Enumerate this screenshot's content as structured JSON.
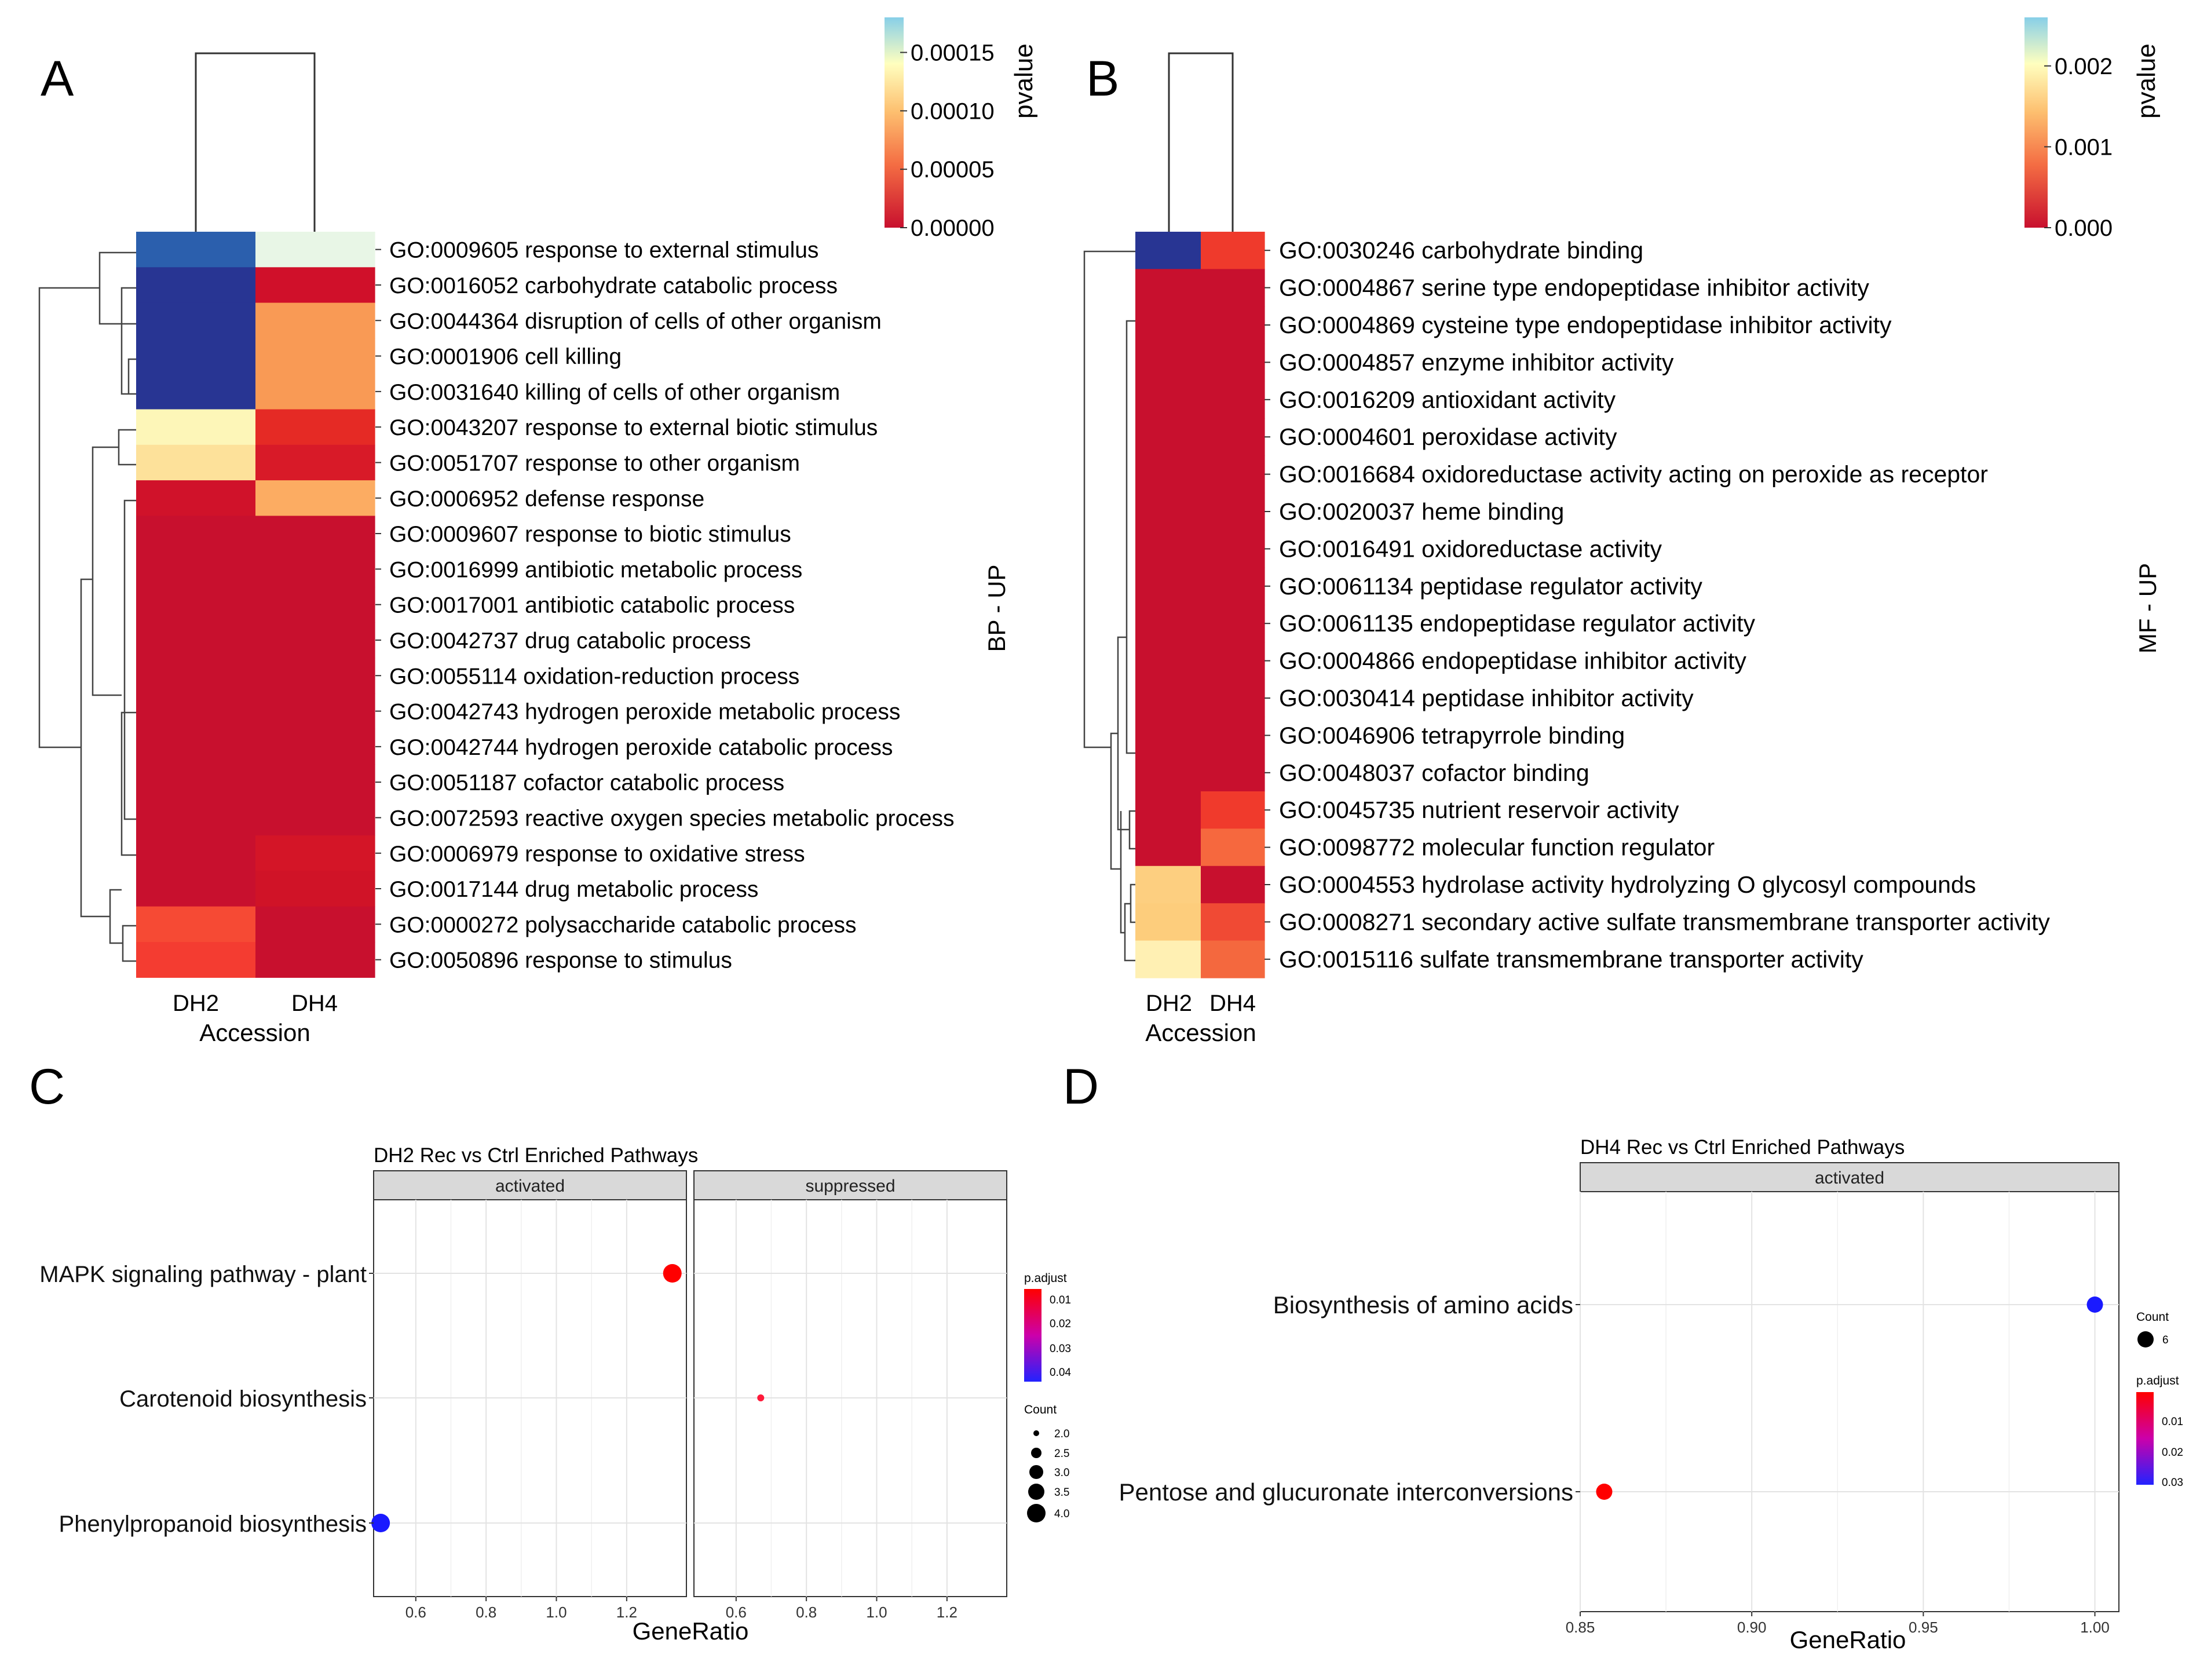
{
  "panels": {
    "A": {
      "label": "A",
      "side_label": "BP - UP",
      "colorbar": {
        "title": "pvalue",
        "ticks": [
          "0.00015",
          "0.00010",
          "0.00005",
          "0.00000"
        ],
        "tick_values": [
          0.00015,
          0.0001,
          5e-05,
          0
        ],
        "max": 0.00018
      },
      "columns": [
        "DH2",
        "DH4"
      ],
      "xlabel": "Accession",
      "rows": [
        "GO:0009605 response to external stimulus",
        "GO:0016052 carbohydrate catabolic process",
        "GO:0044364 disruption of cells of other organism",
        "GO:0001906 cell killing",
        "GO:0031640 killing of cells of other organism",
        "GO:0043207 response to external biotic stimulus",
        "GO:0051707 response to other organism",
        "GO:0006952 defense response",
        "GO:0009607 response to biotic stimulus",
        "GO:0016999 antibiotic metabolic process",
        "GO:0017001 antibiotic catabolic process",
        "GO:0042737 drug catabolic process",
        "GO:0055114 oxidation-reduction process",
        "GO:0042743 hydrogen peroxide metabolic process",
        "GO:0042744 hydrogen peroxide catabolic process",
        "GO:0051187 cofactor catabolic process",
        "GO:0072593 reactive oxygen species metabolic process",
        "GO:0006979 response to oxidative stress",
        "GO:0017144 drug metabolic process",
        "GO:0000272 polysaccharide catabolic process",
        "GO:0050896 response to stimulus"
      ],
      "cell_colors": [
        [
          "#2b5fad",
          "#e8f6e6"
        ],
        [
          "#283593",
          "#d0102a"
        ],
        [
          "#283593",
          "#f99a55"
        ],
        [
          "#283593",
          "#f99a55"
        ],
        [
          "#283593",
          "#f99a55"
        ],
        [
          "#fdf6b8",
          "#e52a25"
        ],
        [
          "#fde19a",
          "#d81a28"
        ],
        [
          "#d0122a",
          "#fcac62"
        ],
        [
          "#c8102e",
          "#c8102e"
        ],
        [
          "#c8102e",
          "#c8102e"
        ],
        [
          "#c8102e",
          "#c8102e"
        ],
        [
          "#c8102e",
          "#c8102e"
        ],
        [
          "#c8102e",
          "#c8102e"
        ],
        [
          "#c8102e",
          "#c8102e"
        ],
        [
          "#c8102e",
          "#c8102e"
        ],
        [
          "#c8102e",
          "#c8102e"
        ],
        [
          "#c8102e",
          "#c8102e"
        ],
        [
          "#c8102e",
          "#d41527"
        ],
        [
          "#c8102e",
          "#d01327"
        ],
        [
          "#f64a34",
          "#c8102e"
        ],
        [
          "#f43c31",
          "#c8102e"
        ]
      ]
    },
    "B": {
      "label": "B",
      "side_label": "MF - UP",
      "colorbar": {
        "title": "pvalue",
        "ticks": [
          "0.002",
          "0.001",
          "0.000"
        ],
        "tick_values": [
          0.002,
          0.001,
          0
        ],
        "max": 0.0026
      },
      "columns": [
        "DH2",
        "DH4"
      ],
      "xlabel": "Accession",
      "rows": [
        "GO:0030246 carbohydrate binding",
        "GO:0004867 serine type endopeptidase inhibitor activity",
        "GO:0004869 cysteine type endopeptidase inhibitor activity",
        "GO:0004857 enzyme inhibitor activity",
        "GO:0016209 antioxidant activity",
        "GO:0004601 peroxidase activity",
        "GO:0016684 oxidoreductase activity acting on peroxide as receptor",
        "GO:0020037 heme binding",
        "GO:0016491 oxidoreductase activity",
        "GO:0061134 peptidase regulator activity",
        "GO:0061135 endopeptidase regulator activity",
        "GO:0004866 endopeptidase inhibitor activity",
        "GO:0030414 peptidase inhibitor activity",
        "GO:0046906 tetrapyrrole binding",
        "GO:0048037 cofactor binding",
        "GO:0045735 nutrient reservoir activity",
        "GO:0098772 molecular function regulator",
        "GO:0004553 hydrolase activity hydrolyzing O glycosyl compounds",
        "GO:0008271 secondary active sulfate transmembrane transporter activity",
        "GO:0015116 sulfate transmembrane transporter activity"
      ],
      "cell_colors": [
        [
          "#283593",
          "#ef3a2c"
        ],
        [
          "#c8102e",
          "#c8102e"
        ],
        [
          "#c8102e",
          "#c8102e"
        ],
        [
          "#c8102e",
          "#c8102e"
        ],
        [
          "#c8102e",
          "#c8102e"
        ],
        [
          "#c8102e",
          "#c8102e"
        ],
        [
          "#c8102e",
          "#c8102e"
        ],
        [
          "#c8102e",
          "#c8102e"
        ],
        [
          "#c8102e",
          "#c8102e"
        ],
        [
          "#c8102e",
          "#c8102e"
        ],
        [
          "#c8102e",
          "#c8102e"
        ],
        [
          "#c8102e",
          "#c8102e"
        ],
        [
          "#c8102e",
          "#c8102e"
        ],
        [
          "#c8102e",
          "#c8102e"
        ],
        [
          "#c8102e",
          "#c8102e"
        ],
        [
          "#c8102e",
          "#f03a2c"
        ],
        [
          "#c8102e",
          "#f6683e"
        ],
        [
          "#fdcf80",
          "#c8102e"
        ],
        [
          "#fdcd7c",
          "#f04a34"
        ],
        [
          "#fff0b3",
          "#f4683e"
        ]
      ]
    },
    "C": {
      "label": "C",
      "title": "DH2 Rec vs Ctrl Enriched Pathways",
      "xlabel": "GeneRatio",
      "facets": [
        {
          "name": "activated",
          "xlim": [
            0.48,
            1.37
          ],
          "ticks": [
            "0.6",
            "0.8",
            "1.0",
            "1.2"
          ],
          "tick_values": [
            0.6,
            0.8,
            1.0,
            1.2
          ]
        },
        {
          "name": "suppressed",
          "xlim": [
            0.48,
            1.37
          ],
          "ticks": [
            "0.6",
            "0.8",
            "1.0",
            "1.2"
          ],
          "tick_values": [
            0.6,
            0.8,
            1.0,
            1.2
          ]
        }
      ],
      "categories": [
        "MAPK signaling pathway - plant",
        "Carotenoid biosynthesis",
        "Phenylpropanoid biosynthesis"
      ],
      "points": [
        {
          "facet": 0,
          "category": 0,
          "x": 1.33,
          "count": 4,
          "p_adjust": 0.005,
          "color": "#ff0000"
        },
        {
          "facet": 1,
          "category": 1,
          "x": 0.67,
          "count": 2,
          "p_adjust": 0.006,
          "color": "#ff1a3a"
        },
        {
          "facet": 0,
          "category": 2,
          "x": 0.5,
          "count": 4,
          "p_adjust": 0.045,
          "color": "#1a1aff"
        }
      ],
      "legend_padjust": {
        "title": "p.adjust",
        "ticks": [
          "0.01",
          "0.02",
          "0.03",
          "0.04"
        ]
      },
      "legend_count": {
        "title": "Count",
        "ticks": [
          "2.0",
          "2.5",
          "3.0",
          "3.5",
          "4.0"
        ]
      }
    },
    "D": {
      "label": "D",
      "title": "DH4 Rec vs Ctrl Enriched Pathways",
      "xlabel": "GeneRatio",
      "facets": [
        {
          "name": "activated",
          "xlim": [
            0.85,
            1.007
          ],
          "ticks": [
            "0.85",
            "0.90",
            "0.95",
            "1.00"
          ],
          "tick_values": [
            0.85,
            0.9,
            0.95,
            1.0
          ]
        }
      ],
      "categories": [
        "Biosynthesis of amino acids",
        "Pentose and glucuronate interconversions"
      ],
      "points": [
        {
          "facet": 0,
          "category": 0,
          "x": 1.0,
          "count": 6,
          "p_adjust": 0.035,
          "color": "#1a1aff"
        },
        {
          "facet": 0,
          "category": 1,
          "x": 0.857,
          "count": 6,
          "p_adjust": 0.002,
          "color": "#ff0000"
        }
      ],
      "legend_count": {
        "title": "Count",
        "ticks": [
          "6"
        ]
      },
      "legend_padjust": {
        "title": "p.adjust",
        "ticks": [
          "0.01",
          "0.02",
          "0.03"
        ]
      }
    }
  },
  "chart_data": [
    {
      "type": "heatmap",
      "title": "BP - UP",
      "x": [
        "DH2",
        "DH4"
      ],
      "xlabel": "Accession",
      "colorbar_label": "pvalue",
      "colorbar_range": [
        0,
        0.00018
      ],
      "y": [
        "GO:0009605 response to external stimulus",
        "GO:0016052 carbohydrate catabolic process",
        "GO:0044364 disruption of cells of other organism",
        "GO:0001906 cell killing",
        "GO:0031640 killing of cells of other organism",
        "GO:0043207 response to external biotic stimulus",
        "GO:0051707 response to other organism",
        "GO:0006952 defense response",
        "GO:0009607 response to biotic stimulus",
        "GO:0016999 antibiotic metabolic process",
        "GO:0017001 antibiotic catabolic process",
        "GO:0042737 drug catabolic process",
        "GO:0055114 oxidation-reduction process",
        "GO:0042743 hydrogen peroxide metabolic process",
        "GO:0042744 hydrogen peroxide catabolic process",
        "GO:0051187 cofactor catabolic process",
        "GO:0072593 reactive oxygen species metabolic process",
        "GO:0006979 response to oxidative stress",
        "GO:0017144 drug metabolic process",
        "GO:0000272 polysaccharide catabolic process",
        "GO:0050896 response to stimulus"
      ],
      "values": [
        [
          0.000165,
          0.00012
        ],
        [
          0.00018,
          3e-06
        ],
        [
          0.00018,
          3e-05
        ],
        [
          0.00018,
          3e-05
        ],
        [
          0.00018,
          3e-05
        ],
        [
          0.0001,
          1.2e-05
        ],
        [
          9e-05,
          6e-06
        ],
        [
          2e-06,
          5e-05
        ],
        [
          0,
          0
        ],
        [
          0,
          0
        ],
        [
          0,
          0
        ],
        [
          0,
          0
        ],
        [
          0,
          0
        ],
        [
          0,
          0
        ],
        [
          0,
          0
        ],
        [
          0,
          0
        ],
        [
          0,
          0
        ],
        [
          0,
          4e-06
        ],
        [
          0,
          3e-06
        ],
        [
          1.8e-05,
          0
        ],
        [
          1.5e-05,
          0
        ]
      ]
    },
    {
      "type": "heatmap",
      "title": "MF - UP",
      "x": [
        "DH2",
        "DH4"
      ],
      "xlabel": "Accession",
      "colorbar_label": "pvalue",
      "colorbar_range": [
        0,
        0.0026
      ],
      "y": [
        "GO:0030246 carbohydrate binding",
        "GO:0004867 serine type endopeptidase inhibitor activity",
        "GO:0004869 cysteine type endopeptidase inhibitor activity",
        "GO:0004857 enzyme inhibitor activity",
        "GO:0016209 antioxidant activity",
        "GO:0004601 peroxidase activity",
        "GO:0016684 oxidoreductase activity acting on peroxide as receptor",
        "GO:0020037 heme binding",
        "GO:0016491 oxidoreductase activity",
        "GO:0061134 peptidase regulator activity",
        "GO:0061135 endopeptidase regulator activity",
        "GO:0004866 endopeptidase inhibitor activity",
        "GO:0030414 peptidase inhibitor activity",
        "GO:0046906 tetrapyrrole binding",
        "GO:0048037 cofactor binding",
        "GO:0045735 nutrient reservoir activity",
        "GO:0098772 molecular function regulator",
        "GO:0004553 hydrolase activity hydrolyzing O glycosyl compounds",
        "GO:0008271 secondary active sulfate transmembrane transporter activity",
        "GO:0015116 sulfate transmembrane transporter activity"
      ],
      "values": [
        [
          0.0026,
          0.0002
        ],
        [
          0,
          0
        ],
        [
          0,
          0
        ],
        [
          0,
          0
        ],
        [
          0,
          0
        ],
        [
          0,
          0
        ],
        [
          0,
          0
        ],
        [
          0,
          0
        ],
        [
          0,
          0
        ],
        [
          0,
          0
        ],
        [
          0,
          0
        ],
        [
          0,
          0
        ],
        [
          0,
          0
        ],
        [
          0,
          0
        ],
        [
          0,
          0
        ],
        [
          0,
          0.0002
        ],
        [
          0,
          0.0005
        ],
        [
          0.0011,
          0
        ],
        [
          0.0011,
          0.0003
        ],
        [
          0.0014,
          0.0005
        ]
      ]
    },
    {
      "type": "scatter",
      "title": "DH2 Rec vs Ctrl Enriched Pathways",
      "xlabel": "GeneRatio",
      "facets": [
        "activated",
        "suppressed"
      ],
      "xlim": [
        0.48,
        1.37
      ],
      "categories": [
        "MAPK signaling pathway - plant",
        "Carotenoid biosynthesis",
        "Phenylpropanoid biosynthesis"
      ],
      "series": [
        {
          "name": "activated",
          "points": [
            {
              "category": "MAPK signaling pathway - plant",
              "x": 1.33,
              "count": 4,
              "p_adjust": 0.005
            },
            {
              "category": "Phenylpropanoid biosynthesis",
              "x": 0.5,
              "count": 4,
              "p_adjust": 0.045
            }
          ]
        },
        {
          "name": "suppressed",
          "points": [
            {
              "category": "Carotenoid biosynthesis",
              "x": 0.67,
              "count": 2,
              "p_adjust": 0.006
            }
          ]
        }
      ]
    },
    {
      "type": "scatter",
      "title": "DH4 Rec vs Ctrl Enriched Pathways",
      "xlabel": "GeneRatio",
      "facets": [
        "activated"
      ],
      "xlim": [
        0.85,
        1.007
      ],
      "categories": [
        "Biosynthesis of amino acids",
        "Pentose and glucuronate interconversions"
      ],
      "series": [
        {
          "name": "activated",
          "points": [
            {
              "category": "Biosynthesis of amino acids",
              "x": 1.0,
              "count": 6,
              "p_adjust": 0.035
            },
            {
              "category": "Pentose and glucuronate interconversions",
              "x": 0.857,
              "count": 6,
              "p_adjust": 0.002
            }
          ]
        }
      ]
    }
  ]
}
